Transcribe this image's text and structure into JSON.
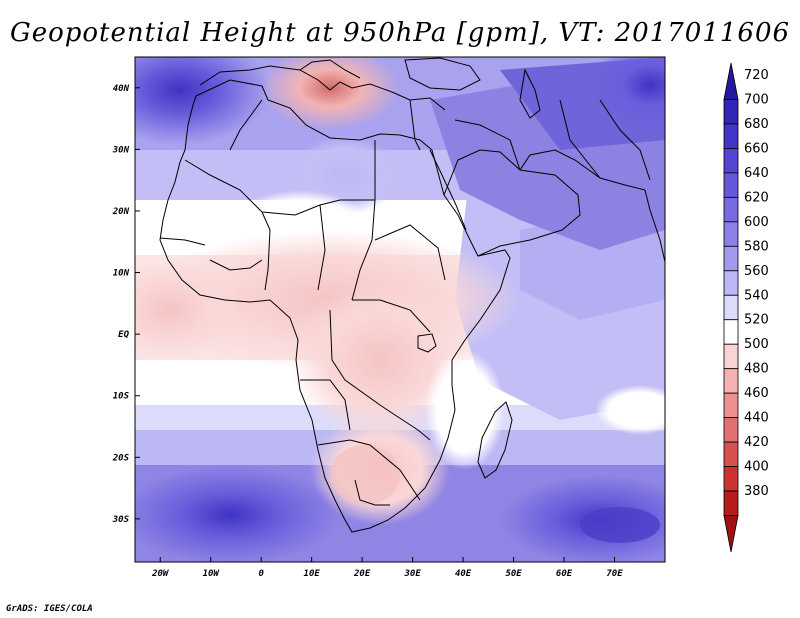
{
  "title": "Geopotential Height at 950hPa [gpm], VT: 2017011606",
  "footer": "GrADS: IGES/COLA",
  "map": {
    "region": "Africa, Middle East and western Indian Ocean",
    "lon_range": [
      -25,
      80
    ],
    "lat_range": [
      -37,
      45
    ],
    "lon_ticks": [
      "20W",
      "10W",
      "0",
      "10E",
      "20E",
      "30E",
      "40E",
      "50E",
      "60E",
      "70E"
    ],
    "lat_ticks": [
      "40N",
      "30N",
      "20N",
      "10N",
      "EQ",
      "10S",
      "20S",
      "30S"
    ]
  },
  "colorbar": {
    "labels": [
      "720",
      "700",
      "680",
      "660",
      "640",
      "620",
      "600",
      "580",
      "560",
      "540",
      "520",
      "500",
      "480",
      "460",
      "440",
      "420",
      "400",
      "380"
    ],
    "colors": [
      "#24189c",
      "#3226b4",
      "#4236c8",
      "#5446d2",
      "#6658da",
      "#786ae0",
      "#8c80e6",
      "#a29af0",
      "#bcb8f6",
      "#dcdcfa",
      "#ffffff",
      "#fad4d4",
      "#f4b2b2",
      "#ec9090",
      "#e27070",
      "#d85050",
      "#cc3232",
      "#b81c1c",
      "#a01010"
    ]
  }
}
